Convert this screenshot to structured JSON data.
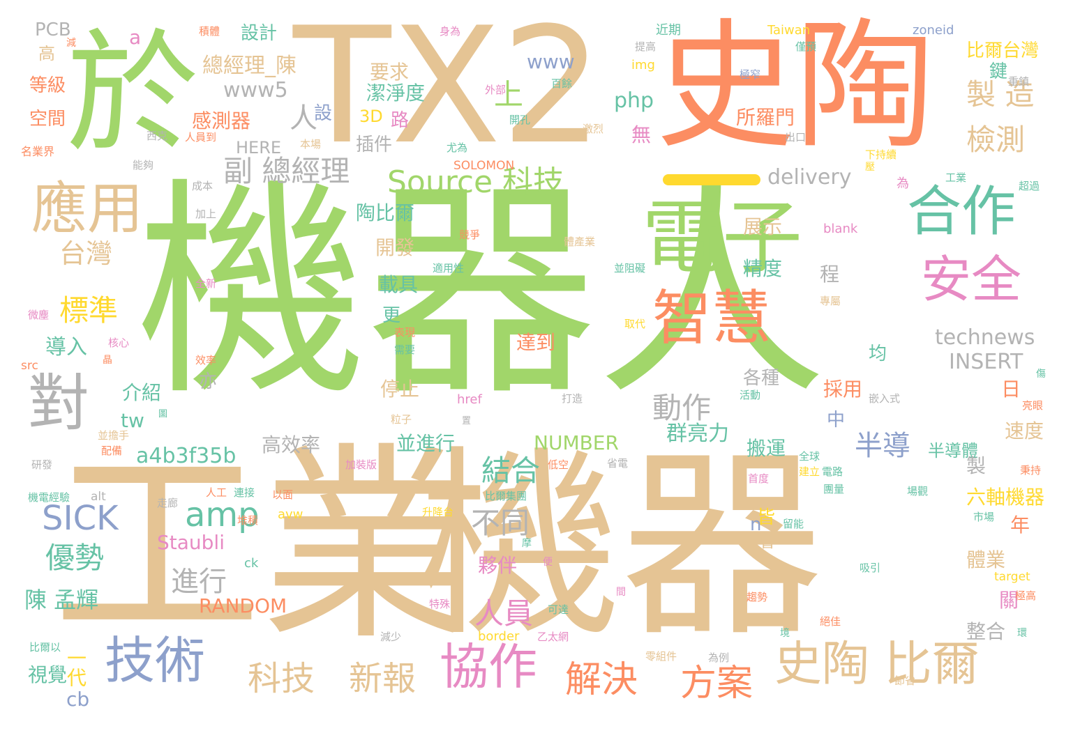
{
  "palette": {
    "green": "#a1d66a",
    "tan": "#e5c494",
    "orange": "#fc8d62",
    "blue": "#8da0cb",
    "pink": "#e78ac3",
    "teal": "#66c2a5",
    "yellow": "#ffd92f",
    "gray": "#b3b3b3"
  },
  "words": [
    {
      "text": "機器人",
      "weight": 1.0,
      "color": "green"
    },
    {
      "text": "工業",
      "weight": 0.95,
      "color": "tan"
    },
    {
      "text": "機器",
      "weight": 0.85,
      "color": "tan"
    },
    {
      "text": "TX2",
      "weight": 0.7,
      "color": "tan"
    },
    {
      "text": "史陶",
      "weight": 0.68,
      "color": "orange"
    },
    {
      "text": "於",
      "weight": 0.6,
      "color": "green"
    },
    {
      "text": "電子",
      "weight": 0.45,
      "color": "green"
    },
    {
      "text": "智慧",
      "weight": 0.4,
      "color": "orange"
    },
    {
      "text": "合作",
      "weight": 0.33,
      "color": "teal"
    },
    {
      "text": "應用",
      "weight": 0.34,
      "color": "tan"
    },
    {
      "text": "對",
      "weight": 0.35,
      "color": "gray"
    },
    {
      "text": "安全",
      "weight": 0.3,
      "color": "pink"
    },
    {
      "text": "技術",
      "weight": 0.3,
      "color": "blue"
    },
    {
      "text": "協作",
      "weight": 0.28,
      "color": "pink"
    },
    {
      "text": "史陶 比爾",
      "weight": 0.28,
      "color": "tan"
    },
    {
      "text": "方案",
      "weight": 0.22,
      "color": "orange"
    },
    {
      "text": "解決",
      "weight": 0.22,
      "color": "orange"
    },
    {
      "text": "新報",
      "weight": 0.2,
      "color": "tan"
    },
    {
      "text": "科技",
      "weight": 0.2,
      "color": "tan"
    },
    {
      "text": "Source 科技",
      "weight": 0.19,
      "color": "green"
    },
    {
      "text": "副 總經理",
      "weight": 0.15,
      "color": "gray"
    },
    {
      "text": "製 造",
      "weight": 0.15,
      "color": "tan"
    },
    {
      "text": "檢測",
      "weight": 0.14,
      "color": "tan"
    },
    {
      "text": "上",
      "weight": 0.14,
      "color": "green"
    },
    {
      "text": "人",
      "weight": 0.13,
      "color": "gray"
    },
    {
      "text": "台灣",
      "weight": 0.13,
      "color": "tan"
    },
    {
      "text": "標準",
      "weight": 0.14,
      "color": "yellow"
    },
    {
      "text": "SICK",
      "weight": 0.16,
      "color": "blue"
    },
    {
      "text": "amp",
      "weight": 0.16,
      "color": "teal"
    },
    {
      "text": "優勢",
      "weight": 0.14,
      "color": "teal"
    },
    {
      "text": "結合",
      "weight": 0.14,
      "color": "teal"
    },
    {
      "text": "人員",
      "weight": 0.14,
      "color": "pink"
    },
    {
      "text": "不同",
      "weight": 0.14,
      "color": "gray"
    },
    {
      "text": "進行",
      "weight": 0.13,
      "color": "gray"
    },
    {
      "text": "半導",
      "weight": 0.13,
      "color": "blue"
    },
    {
      "text": "動作",
      "weight": 0.13,
      "color": "gray"
    },
    {
      "text": "陳 孟輝",
      "weight": 0.12,
      "color": "teal"
    },
    {
      "text": "總經理_陳",
      "weight": 0.11,
      "color": "tan"
    },
    {
      "text": "www5",
      "weight": 0.1,
      "color": "gray"
    },
    {
      "text": "www",
      "weight": 0.1,
      "color": "blue"
    },
    {
      "text": "php",
      "weight": 0.1,
      "color": "teal"
    },
    {
      "text": "要求",
      "weight": 0.1,
      "color": "tan"
    },
    {
      "text": "潔淨度",
      "weight": 0.1,
      "color": "teal"
    },
    {
      "text": "感測器",
      "weight": 0.09,
      "color": "orange"
    },
    {
      "text": "所羅門",
      "weight": 0.09,
      "color": "orange"
    },
    {
      "text": "delivery",
      "weight": 0.09,
      "color": "gray"
    },
    {
      "text": "technews",
      "weight": 0.09,
      "color": "gray"
    },
    {
      "text": "INSERT",
      "weight": 0.09,
      "color": "gray"
    },
    {
      "text": "a4b3f35b",
      "weight": 0.09,
      "color": "teal"
    },
    {
      "text": "群亮力",
      "weight": 0.09,
      "color": "teal"
    },
    {
      "text": "NUMBER",
      "weight": 0.08,
      "color": "green"
    },
    {
      "text": "RANDOM",
      "weight": 0.08,
      "color": "orange"
    },
    {
      "text": "Staubli",
      "weight": 0.08,
      "color": "pink"
    },
    {
      "text": "六軸機器",
      "weight": 0.08,
      "color": "yellow"
    },
    {
      "text": "並進行",
      "weight": 0.08,
      "color": "teal"
    },
    {
      "text": "高效率",
      "weight": 0.08,
      "color": "gray"
    },
    {
      "text": "展示",
      "weight": 0.08,
      "color": "tan"
    },
    {
      "text": "精度",
      "weight": 0.08,
      "color": "teal"
    },
    {
      "text": "陶比爾",
      "weight": 0.08,
      "color": "teal"
    },
    {
      "text": "開發",
      "weight": 0.08,
      "color": "tan"
    },
    {
      "text": "載具",
      "weight": 0.08,
      "color": "teal"
    },
    {
      "text": "達到",
      "weight": 0.08,
      "color": "orange"
    },
    {
      "text": "停止",
      "weight": 0.08,
      "color": "tan"
    },
    {
      "text": "採用",
      "weight": 0.08,
      "color": "orange"
    },
    {
      "text": "速度",
      "weight": 0.08,
      "color": "tan"
    },
    {
      "text": "搬運",
      "weight": 0.08,
      "color": "teal"
    },
    {
      "text": "夥伴",
      "weight": 0.08,
      "color": "pink"
    },
    {
      "text": "體業",
      "weight": 0.08,
      "color": "tan"
    },
    {
      "text": "整合",
      "weight": 0.08,
      "color": "gray"
    },
    {
      "text": "半導體",
      "weight": 0.07,
      "color": "teal"
    },
    {
      "text": "導入",
      "weight": 0.08,
      "color": "teal"
    },
    {
      "text": "介紹",
      "weight": 0.08,
      "color": "teal"
    },
    {
      "text": "tw",
      "weight": 0.08,
      "color": "teal"
    },
    {
      "text": "一代",
      "weight": 0.07,
      "color": "yellow"
    },
    {
      "text": "視覺",
      "weight": 0.07,
      "color": "teal"
    },
    {
      "text": "cb",
      "weight": 0.07,
      "color": "blue"
    },
    {
      "text": "設計",
      "weight": 0.07,
      "color": "teal"
    },
    {
      "text": "PCB",
      "weight": 0.07,
      "color": "gray"
    },
    {
      "text": "比爾台灣",
      "weight": 0.07,
      "color": "yellow"
    },
    {
      "text": "等級",
      "weight": 0.07,
      "color": "orange"
    },
    {
      "text": "空間",
      "weight": 0.07,
      "color": "orange"
    },
    {
      "text": "HERE",
      "weight": 0.07,
      "color": "gray"
    },
    {
      "text": "插件",
      "weight": 0.07,
      "color": "gray"
    },
    {
      "text": "各種",
      "weight": 0.07,
      "color": "gray"
    },
    {
      "text": "3D",
      "weight": 0.06,
      "color": "yellow"
    },
    {
      "text": "路",
      "weight": 0.07,
      "color": "pink"
    },
    {
      "text": "無",
      "weight": 0.07,
      "color": "pink"
    },
    {
      "text": "近期",
      "weight": 0.05,
      "color": "teal"
    },
    {
      "text": "Taiwan",
      "weight": 0.05,
      "color": "yellow"
    },
    {
      "text": "zoneid",
      "weight": 0.05,
      "color": "blue"
    },
    {
      "text": "SOLOMON",
      "weight": 0.05,
      "color": "orange"
    },
    {
      "text": "href",
      "weight": 0.05,
      "color": "pink"
    },
    {
      "text": "blank",
      "weight": 0.05,
      "color": "pink"
    },
    {
      "text": "border",
      "weight": 0.05,
      "color": "yellow"
    },
    {
      "text": "target",
      "weight": 0.05,
      "color": "yellow"
    },
    {
      "text": "alt",
      "weight": 0.05,
      "color": "gray"
    },
    {
      "text": "src",
      "weight": 0.05,
      "color": "orange"
    },
    {
      "text": "img",
      "weight": 0.05,
      "color": "yellow"
    },
    {
      "text": "avw",
      "weight": 0.05,
      "color": "yellow"
    },
    {
      "text": "ck",
      "weight": 0.05,
      "color": "teal"
    },
    {
      "text": "a",
      "weight": 0.07,
      "color": "pink"
    },
    {
      "text": "n",
      "weight": 0.07,
      "color": "blue"
    },
    {
      "text": "日",
      "weight": 0.07,
      "color": "orange"
    },
    {
      "text": "中",
      "weight": 0.07,
      "color": "blue"
    },
    {
      "text": "均",
      "weight": 0.07,
      "color": "teal"
    },
    {
      "text": "亦",
      "weight": 0.07,
      "color": "gray"
    },
    {
      "text": "更",
      "weight": 0.07,
      "color": "teal"
    },
    {
      "text": "程",
      "weight": 0.07,
      "color": "gray"
    },
    {
      "text": "製",
      "weight": 0.07,
      "color": "gray"
    },
    {
      "text": "皆",
      "weight": 0.07,
      "color": "yellow"
    },
    {
      "text": "年",
      "weight": 0.07,
      "color": "orange"
    },
    {
      "text": "關",
      "weight": 0.07,
      "color": "pink"
    },
    {
      "text": "鍵",
      "weight": 0.07,
      "color": "teal"
    },
    {
      "text": "設",
      "weight": 0.07,
      "color": "blue"
    },
    {
      "text": "高",
      "weight": 0.06,
      "color": "tan"
    },
    {
      "text": "會",
      "weight": 0.06,
      "color": "tan"
    },
    {
      "text": "為",
      "weight": 0.05,
      "color": "pink"
    },
    {
      "text": "名業界",
      "weight": 0.04,
      "color": "orange"
    },
    {
      "text": "機電經驗",
      "weight": 0.04,
      "color": "teal"
    },
    {
      "text": "比爾以",
      "weight": 0.04,
      "color": "teal"
    },
    {
      "text": "研發",
      "weight": 0.04,
      "color": "gray"
    },
    {
      "text": "微塵",
      "weight": 0.04,
      "color": "pink"
    },
    {
      "text": "加上",
      "weight": 0.04,
      "color": "gray"
    },
    {
      "text": "全新",
      "weight": 0.04,
      "color": "pink"
    },
    {
      "text": "成本",
      "weight": 0.04,
      "color": "gray"
    },
    {
      "text": "能夠",
      "weight": 0.04,
      "color": "gray"
    },
    {
      "text": "西克",
      "weight": 0.04,
      "color": "gray"
    },
    {
      "text": "人員到",
      "weight": 0.04,
      "color": "orange"
    },
    {
      "text": "本場",
      "weight": 0.04,
      "color": "tan"
    },
    {
      "text": "尤為",
      "weight": 0.04,
      "color": "teal"
    },
    {
      "text": "開孔",
      "weight": 0.04,
      "color": "teal"
    },
    {
      "text": "百餘",
      "weight": 0.04,
      "color": "teal"
    },
    {
      "text": "外部",
      "weight": 0.04,
      "color": "pink"
    },
    {
      "text": "身為",
      "weight": 0.04,
      "color": "pink"
    },
    {
      "text": "提高",
      "weight": 0.04,
      "color": "gray"
    },
    {
      "text": "僅預",
      "weight": 0.04,
      "color": "teal"
    },
    {
      "text": "極窄",
      "weight": 0.04,
      "color": "blue"
    },
    {
      "text": "重鎮",
      "weight": 0.04,
      "color": "gray"
    },
    {
      "text": "出口",
      "weight": 0.04,
      "color": "gray"
    },
    {
      "text": "激烈",
      "weight": 0.04,
      "color": "tan"
    },
    {
      "text": "工業",
      "weight": 0.04,
      "color": "teal"
    },
    {
      "text": "超過",
      "weight": 0.04,
      "color": "teal"
    },
    {
      "text": "下持續",
      "weight": 0.04,
      "color": "yellow"
    },
    {
      "text": "競爭",
      "weight": 0.04,
      "color": "orange"
    },
    {
      "text": "體產業",
      "weight": 0.04,
      "color": "tan"
    },
    {
      "text": "適用性",
      "weight": 0.04,
      "color": "teal"
    },
    {
      "text": "並阻礙",
      "weight": 0.04,
      "color": "teal"
    },
    {
      "text": "取代",
      "weight": 0.04,
      "color": "yellow"
    },
    {
      "text": "專屬",
      "weight": 0.04,
      "color": "tan"
    },
    {
      "text": "核心",
      "weight": 0.04,
      "color": "pink"
    },
    {
      "text": "表現",
      "weight": 0.04,
      "color": "orange"
    },
    {
      "text": "需要",
      "weight": 0.04,
      "color": "teal"
    },
    {
      "text": "效率",
      "weight": 0.04,
      "color": "orange"
    },
    {
      "text": "打造",
      "weight": 0.04,
      "color": "gray"
    },
    {
      "text": "粒子",
      "weight": 0.04,
      "color": "tan"
    },
    {
      "text": "嵌入式",
      "weight": 0.04,
      "color": "gray"
    },
    {
      "text": "亮眼",
      "weight": 0.04,
      "color": "orange"
    },
    {
      "text": "活動",
      "weight": 0.04,
      "color": "teal"
    },
    {
      "text": "並擔手",
      "weight": 0.04,
      "color": "tan"
    },
    {
      "text": "配備",
      "weight": 0.04,
      "color": "orange"
    },
    {
      "text": "加裝版",
      "weight": 0.04,
      "color": "pink"
    },
    {
      "text": "低空",
      "weight": 0.04,
      "color": "orange"
    },
    {
      "text": "省電",
      "weight": 0.04,
      "color": "gray"
    },
    {
      "text": "全球",
      "weight": 0.04,
      "color": "teal"
    },
    {
      "text": "建立",
      "weight": 0.04,
      "color": "yellow"
    },
    {
      "text": "電路",
      "weight": 0.04,
      "color": "teal"
    },
    {
      "text": "首度",
      "weight": 0.04,
      "color": "pink"
    },
    {
      "text": "秉持",
      "weight": 0.04,
      "color": "orange"
    },
    {
      "text": "以面",
      "weight": 0.04,
      "color": "orange"
    },
    {
      "text": "走廊",
      "weight": 0.04,
      "color": "gray"
    },
    {
      "text": "人工",
      "weight": 0.04,
      "color": "orange"
    },
    {
      "text": "連接",
      "weight": 0.04,
      "color": "teal"
    },
    {
      "text": "比爾集團",
      "weight": 0.04,
      "color": "teal"
    },
    {
      "text": "升降台",
      "weight": 0.04,
      "color": "yellow"
    },
    {
      "text": "團量",
      "weight": 0.04,
      "color": "teal"
    },
    {
      "text": "場觀",
      "weight": 0.04,
      "color": "teal"
    },
    {
      "text": "留能",
      "weight": 0.04,
      "color": "teal"
    },
    {
      "text": "市場",
      "weight": 0.04,
      "color": "teal"
    },
    {
      "text": "堆積",
      "weight": 0.04,
      "color": "orange"
    },
    {
      "text": "吸引",
      "weight": 0.04,
      "color": "teal"
    },
    {
      "text": "趨勢",
      "weight": 0.04,
      "color": "orange"
    },
    {
      "text": "可達",
      "weight": 0.04,
      "color": "teal"
    },
    {
      "text": "特殊",
      "weight": 0.04,
      "color": "pink"
    },
    {
      "text": "極高",
      "weight": 0.04,
      "color": "orange"
    },
    {
      "text": "絕佳",
      "weight": 0.04,
      "color": "orange"
    },
    {
      "text": "乙太網",
      "weight": 0.04,
      "color": "pink"
    },
    {
      "text": "減少",
      "weight": 0.04,
      "color": "gray"
    },
    {
      "text": "零組件",
      "weight": 0.04,
      "color": "tan"
    },
    {
      "text": "為例",
      "weight": 0.04,
      "color": "gray"
    },
    {
      "text": "節省",
      "weight": 0.04,
      "color": "tan"
    },
    {
      "text": "積體",
      "weight": 0.04,
      "color": "orange"
    },
    {
      "text": "減",
      "weight": 0.03,
      "color": "orange"
    },
    {
      "text": "圖",
      "weight": 0.03,
      "color": "teal"
    },
    {
      "text": "晶",
      "weight": 0.03,
      "color": "orange"
    },
    {
      "text": "置",
      "weight": 0.03,
      "color": "gray"
    },
    {
      "text": "摩",
      "weight": 0.03,
      "color": "teal"
    },
    {
      "text": "便",
      "weight": 0.03,
      "color": "pink"
    },
    {
      "text": "間",
      "weight": 0.03,
      "color": "pink"
    },
    {
      "text": "境",
      "weight": 0.03,
      "color": "teal"
    },
    {
      "text": "環",
      "weight": 0.03,
      "color": "teal"
    },
    {
      "text": "傷",
      "weight": 0.03,
      "color": "teal"
    },
    {
      "text": "壓",
      "weight": 0.03,
      "color": "yellow"
    }
  ]
}
